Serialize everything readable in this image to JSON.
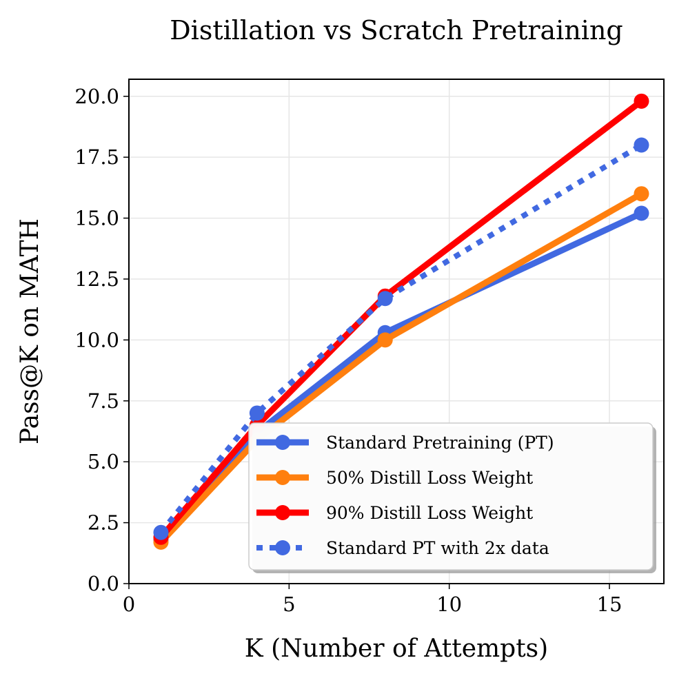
{
  "chart_data": {
    "type": "line",
    "title": "Distillation vs Scratch Pretraining",
    "xlabel": "K (Number of Attempts)",
    "ylabel": "Pass@K on MATH",
    "xlim": [
      0,
      16.7
    ],
    "ylim": [
      0,
      20.7
    ],
    "xticks": [
      0,
      5,
      10,
      15
    ],
    "xtick_labels": [
      "0",
      "5",
      "10",
      "15"
    ],
    "yticks": [
      0,
      2.5,
      5,
      7.5,
      10,
      12.5,
      15,
      17.5,
      20
    ],
    "ytick_labels": [
      "0.0",
      "2.5",
      "5.0",
      "7.5",
      "10.0",
      "12.5",
      "15.0",
      "17.5",
      "20.0"
    ],
    "grid": true,
    "legend_position": "bottom-right",
    "x": [
      1,
      4,
      8,
      16
    ],
    "series": [
      {
        "name": "Standard Pretraining (PT)",
        "values": [
          1.8,
          6.2,
          10.3,
          15.2
        ],
        "color": "#4169e1",
        "style": "solid"
      },
      {
        "name": "50% Distill Loss Weight",
        "values": [
          1.7,
          5.9,
          10.0,
          16.0
        ],
        "color": "#ff7f0e",
        "style": "solid"
      },
      {
        "name": "90% Distill Loss Weight",
        "values": [
          1.9,
          6.5,
          11.8,
          19.8
        ],
        "color": "#ff0000",
        "style": "solid"
      },
      {
        "name": "Standard PT with 2x data",
        "values": [
          2.1,
          7.0,
          11.7,
          18.0
        ],
        "color": "#4169e1",
        "style": "dotted"
      }
    ]
  }
}
